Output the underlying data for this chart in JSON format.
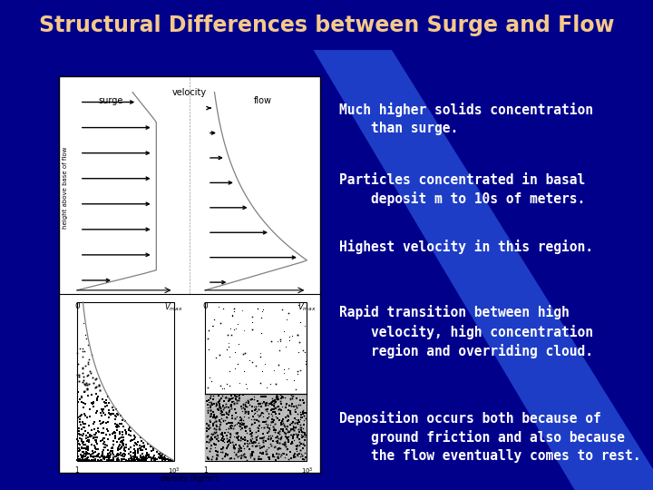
{
  "title": "Structural Differences between Surge and Flow",
  "title_color": "#F5C98A",
  "title_bg": "#0000BB",
  "bg_color": "#00008B",
  "bullet_color": "#FFFFFF",
  "bullets": [
    "Much higher solids concentration\n    than surge.",
    "Particles concentrated in basal\n    deposit m to 10s of meters.",
    "Highest velocity in this region.",
    "Rapid transition between high\n    velocity, high concentration\n    region and overriding cloud.",
    "Deposition occurs both because of\n    ground friction and also because\n    the flow eventually comes to rest."
  ],
  "font_size_title": 17,
  "font_size_body": 10.5
}
